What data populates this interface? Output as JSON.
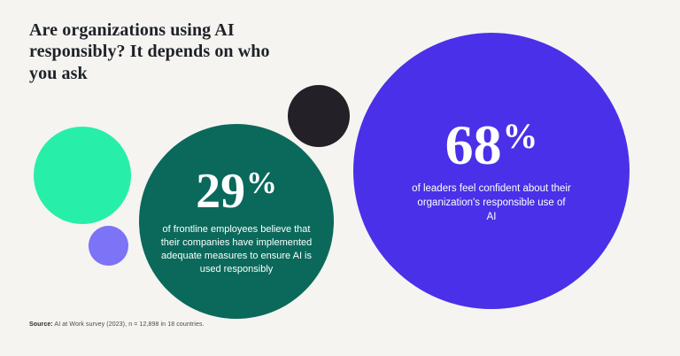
{
  "header": {
    "title": "Are organizations using AI responsibly? It depends on who you ask"
  },
  "chart_data": {
    "type": "bubble",
    "title": "Are organizations using AI responsibly? It depends on who you ask",
    "legend_position": "none",
    "series": [
      {
        "name": "frontline-employees",
        "value": "29",
        "unit": "%",
        "numeric_value": 29,
        "description": "of frontline employees believe that their companies have implemented adequate measures to ensure AI is used responsibly",
        "color": "#0a695b"
      },
      {
        "name": "leaders",
        "value": "68",
        "unit": "%",
        "numeric_value": 68,
        "description": "of leaders feel confident about their organization's responsible use of AI",
        "color": "#4a30e8"
      }
    ],
    "decorative_circles": [
      {
        "name": "mint-circle",
        "color": "#27efa9"
      },
      {
        "name": "periwinkle-circle",
        "color": "#7c73f7"
      },
      {
        "name": "black-circle",
        "color": "#232127"
      }
    ]
  },
  "footer": {
    "source_label": "Source:",
    "source_text": " AI at Work survey (2023), n = 12,898 in 18 countries."
  }
}
